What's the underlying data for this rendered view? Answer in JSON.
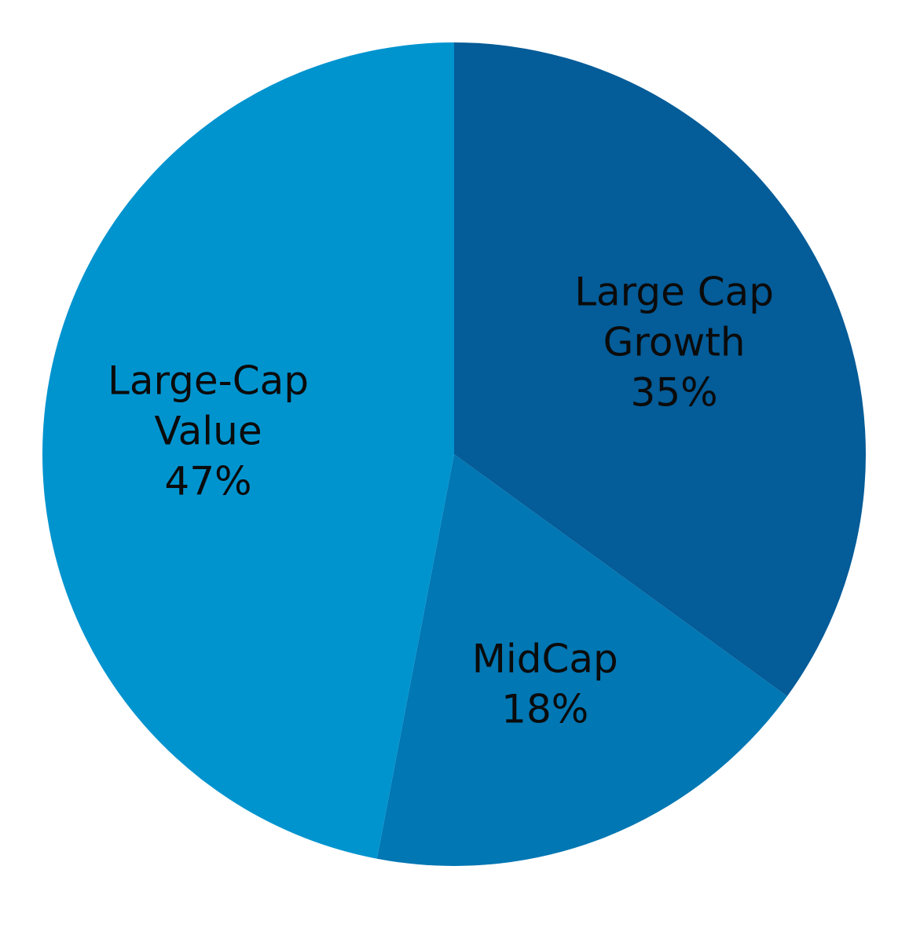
{
  "chart_data": {
    "type": "pie",
    "start_angle_deg": 0,
    "direction": "clockwise",
    "slices": [
      {
        "label_lines": [
          "Large Cap",
          "Growth"
        ],
        "value": 35,
        "value_label": "35%",
        "color": "#045c98"
      },
      {
        "label_lines": [
          "MidCap"
        ],
        "value": 18,
        "value_label": "18%",
        "color": "#0177b3"
      },
      {
        "label_lines": [
          "Large-Cap",
          "Value"
        ],
        "value": 47,
        "value_label": "47%",
        "color": "#0094cf"
      }
    ],
    "title": "",
    "legend": "none"
  }
}
